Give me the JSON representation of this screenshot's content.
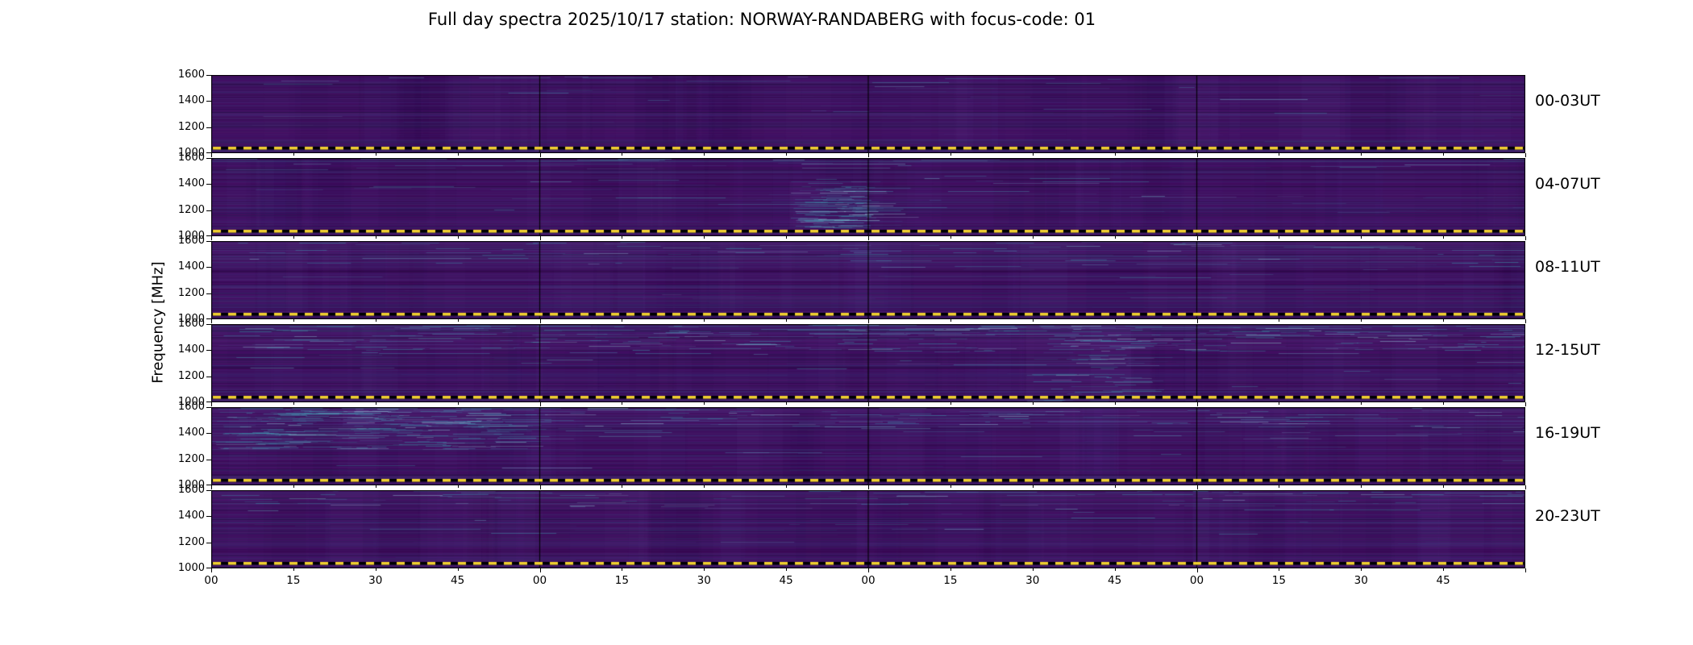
{
  "figure": {
    "background": "#ffffff"
  },
  "chart_data": {
    "type": "heatmap",
    "subtype": "spectrogram panel grid (6 stacked 4-hour panels covering a full day)",
    "title": "Full day spectra 2025/10/17 station: NORWAY-RANDABERG with focus-code: 01",
    "station": "NORWAY-RANDABERG",
    "date": "2025/10/17",
    "focus_code": "01",
    "colormap": "viridis (dark purple low-signal background with sparse lighter/teal streaks)",
    "y_axis": {
      "label": "Frequency [MHz]",
      "range": [
        1000,
        1600
      ],
      "ticks": [
        1600,
        1400,
        1200,
        1000
      ],
      "tick_labels": [
        "1600",
        "1400",
        "1200",
        "1000"
      ]
    },
    "x_axis": {
      "label": "",
      "unit": "minutes past each hour",
      "hours_per_panel": 4,
      "tick_labels": [
        "00",
        "15",
        "30",
        "45",
        "00",
        "15",
        "30",
        "45",
        "00",
        "15",
        "30",
        "45",
        "00",
        "15",
        "30",
        "45"
      ]
    },
    "marker_line": {
      "style": "dashed",
      "dash_colors": [
        "#f2d12e",
        "#000000"
      ],
      "frequency_mhz": 1000,
      "note": "yellow/black dashed horizontal line near the bottom of every panel"
    },
    "panels": [
      {
        "label": "00-03UT",
        "activity": 0.2,
        "features": []
      },
      {
        "label": "04-07UT",
        "activity": 0.4,
        "features": [
          {
            "x": 0.44,
            "y": 0.3,
            "w": 0.06,
            "h": 0.6,
            "intensity": 0.5
          }
        ]
      },
      {
        "label": "08-11UT",
        "activity": 0.3,
        "features": [
          {
            "x": 0.0,
            "y": 0.0,
            "w": 1.0,
            "h": 0.3,
            "intensity": 0.2
          }
        ]
      },
      {
        "label": "12-15UT",
        "activity": 0.85,
        "features": [
          {
            "x": 0.0,
            "y": 0.0,
            "w": 1.0,
            "h": 0.35,
            "intensity": 0.7
          },
          {
            "x": 0.62,
            "y": 0.0,
            "w": 0.08,
            "h": 1.0,
            "intensity": 0.3
          }
        ]
      },
      {
        "label": "16-19UT",
        "activity": 0.6,
        "features": [
          {
            "x": 0.0,
            "y": 0.0,
            "w": 0.22,
            "h": 0.55,
            "intensity": 0.9
          },
          {
            "x": 0.1,
            "y": 0.0,
            "w": 0.9,
            "h": 0.25,
            "intensity": 0.35
          }
        ]
      },
      {
        "label": "20-23UT",
        "activity": 0.3,
        "features": [
          {
            "x": 0.0,
            "y": 0.0,
            "w": 1.0,
            "h": 0.2,
            "intensity": 0.25
          }
        ]
      }
    ]
  }
}
